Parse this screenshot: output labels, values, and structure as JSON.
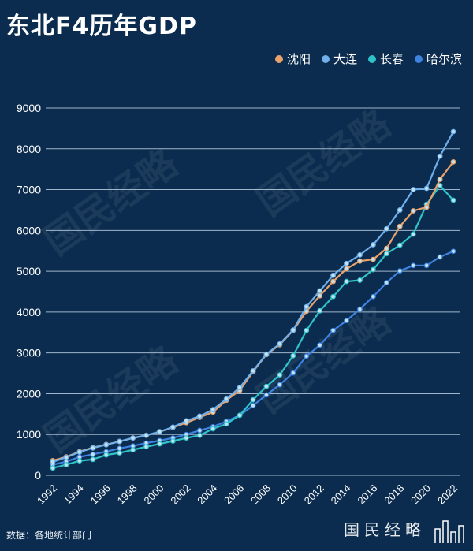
{
  "chart_data": {
    "type": "line",
    "title": "东北F4历年GDP",
    "xlabel": "",
    "ylabel": "",
    "ylim": [
      0,
      9000
    ],
    "yticks": [
      "0",
      "1000",
      "2000",
      "3000",
      "4000",
      "5000",
      "6000",
      "7000",
      "8000",
      "9000"
    ],
    "xticks": [
      "1992",
      "1994",
      "1996",
      "1998",
      "2000",
      "2002",
      "2004",
      "2006",
      "2008",
      "2010",
      "2012",
      "2014",
      "2016",
      "2018",
      "2020",
      "2022"
    ],
    "grid": true,
    "legend_position": "top-right",
    "x": [
      1992,
      1993,
      1994,
      1995,
      1996,
      1997,
      1998,
      1999,
      2000,
      2001,
      2002,
      2003,
      2004,
      2005,
      2006,
      2007,
      2008,
      2009,
      2010,
      2011,
      2012,
      2013,
      2014,
      2015,
      2016,
      2017,
      2018,
      2019,
      2020,
      2021,
      2022
    ],
    "series": [
      {
        "name": "沈阳",
        "color": "#e9a26b",
        "values": [
          360,
          450,
          580,
          680,
          755,
          830,
          915,
          980,
          1065,
          1175,
          1290,
          1420,
          1550,
          1840,
          2080,
          2540,
          2960,
          3200,
          3550,
          4020,
          4400,
          4750,
          5060,
          5250,
          5290,
          5560,
          6100,
          6480,
          6570,
          7250,
          7680
        ]
      },
      {
        "name": "大连",
        "color": "#6fb0ec",
        "values": [
          330,
          440,
          570,
          670,
          750,
          830,
          915,
          980,
          1070,
          1180,
          1335,
          1450,
          1610,
          1870,
          2150,
          2560,
          2970,
          3220,
          3560,
          4130,
          4520,
          4900,
          5190,
          5400,
          5650,
          6040,
          6500,
          7000,
          7030,
          7820,
          8420
        ]
      },
      {
        "name": "长春",
        "color": "#2fc2c8",
        "values": [
          180,
          260,
          355,
          390,
          500,
          550,
          625,
          700,
          770,
          840,
          915,
          980,
          1140,
          1260,
          1470,
          1850,
          2180,
          2460,
          2930,
          3550,
          4030,
          4380,
          4750,
          4780,
          5040,
          5430,
          5640,
          5910,
          6640,
          7100,
          6740
        ]
      },
      {
        "name": "哈尔滨",
        "color": "#3f83e2",
        "values": [
          260,
          335,
          450,
          515,
          580,
          660,
          720,
          790,
          850,
          915,
          1000,
          1100,
          1190,
          1320,
          1470,
          1710,
          1970,
          2220,
          2510,
          2920,
          3190,
          3550,
          3790,
          4070,
          4380,
          4720,
          5010,
          5140,
          5140,
          5350,
          5490
        ]
      }
    ]
  },
  "watermark": "国民经略",
  "source": "数据：各地统计部门",
  "logo": "国民经略"
}
